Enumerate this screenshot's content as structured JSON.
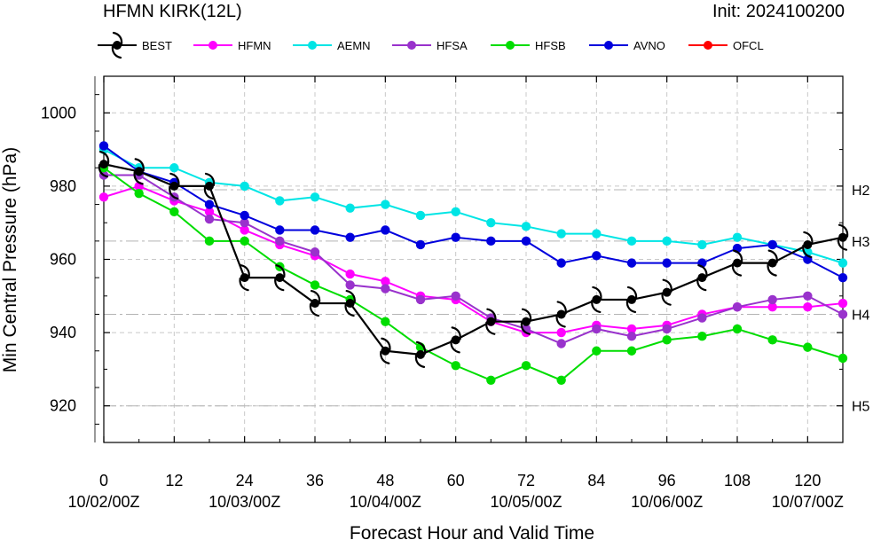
{
  "header": {
    "title_left": "HFMN KIRK(12L)",
    "title_right": "Init: 2024100200"
  },
  "chart_data": {
    "type": "line",
    "xlabel": "Forecast Hour and Valid Time",
    "ylabel": "Min Central Pressure (hPa)",
    "xlim": [
      0,
      126
    ],
    "ylim": [
      910,
      1010
    ],
    "grid": "dashed",
    "legend": "top",
    "x_ticks": [
      0,
      12,
      24,
      36,
      48,
      60,
      72,
      84,
      96,
      108,
      120
    ],
    "x_date_labels": [
      {
        "x": 0,
        "label": "10/02/00Z"
      },
      {
        "x": 24,
        "label": "10/03/00Z"
      },
      {
        "x": 48,
        "label": "10/04/00Z"
      },
      {
        "x": 72,
        "label": "10/05/00Z"
      },
      {
        "x": 96,
        "label": "10/06/00Z"
      },
      {
        "x": 120,
        "label": "10/07/00Z"
      }
    ],
    "y_ticks": [
      920,
      940,
      960,
      980,
      1000
    ],
    "category_lines": [
      {
        "label": "H2",
        "value": 979
      },
      {
        "label": "H3",
        "value": 965
      },
      {
        "label": "H4",
        "value": 945
      },
      {
        "label": "H5",
        "value": 920
      }
    ],
    "series": [
      {
        "name": "BEST",
        "color": "#000000",
        "marker": "hurricane-icon",
        "x": [
          0,
          6,
          12,
          18,
          24,
          30,
          36,
          42,
          48,
          54,
          60,
          66,
          72,
          78,
          84,
          90,
          96,
          102,
          108,
          114,
          120,
          126
        ],
        "y": [
          986,
          984,
          980,
          980,
          955,
          955,
          948,
          948,
          935,
          934,
          938,
          943,
          943,
          945,
          949,
          949,
          951,
          955,
          959,
          959,
          964,
          966
        ]
      },
      {
        "name": "HFMN",
        "color": "#ff00ff",
        "marker": "dot",
        "x": [
          0,
          6,
          12,
          18,
          24,
          30,
          36,
          42,
          48,
          54,
          60,
          66,
          72,
          78,
          84,
          90,
          96,
          102,
          108,
          114,
          120,
          126
        ],
        "y": [
          977,
          980,
          976,
          973,
          968,
          964,
          961,
          956,
          954,
          950,
          949,
          943,
          940,
          940,
          942,
          941,
          942,
          945,
          947,
          947,
          947,
          948
        ]
      },
      {
        "name": "AEMN",
        "color": "#00e5e5",
        "marker": "dot",
        "x": [
          0,
          6,
          12,
          18,
          24,
          30,
          36,
          42,
          48,
          54,
          60,
          66,
          72,
          78,
          84,
          90,
          96,
          102,
          108,
          114,
          120,
          126
        ],
        "y": [
          990,
          985,
          985,
          981,
          980,
          976,
          977,
          974,
          975,
          972,
          973,
          970,
          969,
          967,
          967,
          965,
          965,
          964,
          966,
          964,
          962,
          959
        ]
      },
      {
        "name": "HFSA",
        "color": "#9932cc",
        "marker": "dot",
        "x": [
          0,
          6,
          12,
          18,
          24,
          30,
          36,
          42,
          48,
          54,
          60,
          66,
          72,
          78,
          84,
          90,
          96,
          102,
          108,
          114,
          120,
          126
        ],
        "y": [
          983,
          983,
          977,
          971,
          970,
          965,
          962,
          953,
          952,
          949,
          950,
          944,
          941,
          937,
          941,
          939,
          941,
          944,
          947,
          949,
          950,
          945
        ]
      },
      {
        "name": "HFSB",
        "color": "#00dd00",
        "marker": "dot",
        "x": [
          0,
          6,
          12,
          18,
          24,
          30,
          36,
          42,
          48,
          54,
          60,
          66,
          72,
          78,
          84,
          90,
          96,
          102,
          108,
          114,
          120,
          126
        ],
        "y": [
          985,
          978,
          973,
          965,
          965,
          958,
          953,
          949,
          943,
          936,
          931,
          927,
          931,
          927,
          935,
          935,
          938,
          939,
          941,
          938,
          936,
          933
        ]
      },
      {
        "name": "AVNO",
        "color": "#0000dd",
        "marker": "dot",
        "x": [
          0,
          6,
          12,
          18,
          24,
          30,
          36,
          42,
          48,
          54,
          60,
          66,
          72,
          78,
          84,
          90,
          96,
          102,
          108,
          114,
          120,
          126
        ],
        "y": [
          991,
          984,
          981,
          975,
          972,
          968,
          968,
          966,
          968,
          964,
          966,
          965,
          965,
          959,
          961,
          959,
          959,
          959,
          963,
          964,
          960,
          955
        ]
      },
      {
        "name": "OFCL",
        "color": "#ff0000",
        "marker": "dot",
        "x": [],
        "y": []
      }
    ]
  }
}
